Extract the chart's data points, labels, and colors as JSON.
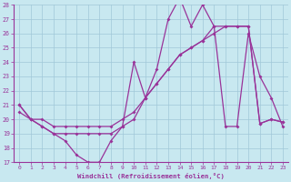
{
  "xlabel": "Windchill (Refroidissement éolien,°C)",
  "xlim": [
    -0.5,
    23.5
  ],
  "ylim": [
    17,
    28
  ],
  "yticks": [
    17,
    18,
    19,
    20,
    21,
    22,
    23,
    24,
    25,
    26,
    27,
    28
  ],
  "xticks": [
    0,
    1,
    2,
    3,
    4,
    5,
    6,
    7,
    8,
    9,
    10,
    11,
    12,
    13,
    14,
    15,
    16,
    17,
    18,
    19,
    20,
    21,
    22,
    23
  ],
  "bg_color": "#c8e8f0",
  "grid_color": "#a0c8d8",
  "line_color": "#993399",
  "line1_x": [
    0,
    1,
    2,
    3,
    4,
    5,
    6,
    7,
    8,
    9,
    10,
    11,
    12,
    13,
    14,
    15,
    16,
    17,
    18,
    19,
    20,
    21,
    22,
    23
  ],
  "line1_y": [
    21.0,
    20.0,
    19.5,
    19.0,
    18.5,
    17.5,
    17.0,
    17.0,
    18.5,
    19.5,
    24.0,
    21.5,
    23.5,
    27.0,
    28.5,
    26.5,
    28.0,
    26.5,
    19.5,
    19.5,
    26.0,
    23.0,
    21.5,
    19.5
  ],
  "line2_x": [
    0,
    1,
    2,
    3,
    4,
    5,
    6,
    7,
    8,
    9,
    10,
    11,
    12,
    13,
    14,
    15,
    16,
    17,
    18,
    19,
    20,
    21,
    22,
    23
  ],
  "line2_y": [
    20.5,
    20.0,
    20.0,
    19.5,
    19.5,
    19.5,
    19.5,
    19.5,
    19.5,
    20.0,
    20.5,
    21.5,
    22.5,
    23.5,
    24.5,
    25.0,
    25.5,
    26.0,
    26.5,
    26.5,
    26.5,
    19.7,
    20.0,
    19.8
  ],
  "line3_x": [
    0,
    1,
    2,
    3,
    4,
    5,
    6,
    7,
    8,
    9,
    10,
    11,
    12,
    13,
    14,
    15,
    16,
    17,
    18,
    19,
    20,
    21,
    22,
    23
  ],
  "line3_y": [
    21.0,
    20.0,
    19.5,
    19.0,
    19.0,
    19.0,
    19.0,
    19.0,
    19.0,
    19.5,
    20.0,
    21.5,
    22.5,
    23.5,
    24.5,
    25.0,
    25.5,
    26.5,
    26.5,
    26.5,
    26.5,
    19.7,
    20.0,
    19.8
  ]
}
